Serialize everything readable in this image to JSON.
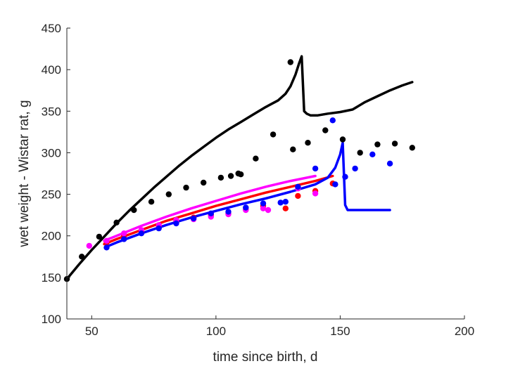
{
  "chart_data": {
    "type": "scatter",
    "xlabel": "time since birth, d",
    "ylabel": "wet weight - Wistar rat, g",
    "xlim": [
      40,
      200
    ],
    "ylim": [
      100,
      450
    ],
    "xticks": [
      50,
      100,
      150,
      200
    ],
    "yticks": [
      100,
      150,
      200,
      250,
      300,
      350,
      400,
      450
    ],
    "grid": false,
    "legend": "none",
    "box": "left-bottom",
    "lines": [
      {
        "color": "#000000",
        "x": [
          40,
          45,
          50,
          55,
          60,
          65,
          70,
          75,
          80,
          85,
          90,
          95,
          100,
          105,
          110,
          115,
          120,
          125,
          128,
          130,
          132,
          133.5,
          134.5,
          135.5,
          136.5,
          138,
          141,
          145,
          150,
          155,
          160,
          165,
          170,
          175,
          179
        ],
        "y": [
          148,
          166,
          183,
          199,
          215,
          230,
          244,
          258,
          271,
          284,
          296,
          307,
          318,
          328,
          337,
          346,
          355,
          363,
          371,
          380,
          394,
          408,
          416,
          350,
          347,
          345,
          345,
          347,
          349,
          352,
          361,
          368,
          375,
          381,
          385
        ]
      },
      {
        "color": "#ff0000",
        "x": [
          55,
          60,
          70,
          80,
          90,
          100,
          110,
          120,
          130,
          140,
          147
        ],
        "y": [
          190,
          196,
          207,
          218,
          227,
          236,
          244,
          252,
          259,
          266,
          272
        ]
      },
      {
        "color": "#ff00ff",
        "x": [
          55,
          60,
          70,
          80,
          90,
          100,
          110,
          120,
          130,
          140
        ],
        "y": [
          194,
          200,
          212,
          223,
          233,
          242,
          251,
          259,
          266,
          272
        ]
      },
      {
        "color": "#0000ff",
        "x": [
          56,
          60,
          70,
          80,
          90,
          100,
          110,
          120,
          130,
          140,
          145,
          148,
          150,
          151,
          152,
          153,
          156,
          160,
          165,
          170
        ],
        "y": [
          187,
          192,
          203,
          213,
          222,
          230,
          238,
          245,
          253,
          262,
          270,
          282,
          298,
          312,
          237,
          231,
          231,
          231,
          231,
          231
        ]
      }
    ],
    "series": [
      {
        "color": "#000000",
        "x": [
          40,
          46,
          53,
          60,
          67,
          74,
          81,
          88,
          95,
          102,
          106,
          109,
          110,
          116,
          123,
          130,
          131,
          137,
          144,
          151,
          158,
          165,
          172,
          179
        ],
        "y": [
          148,
          175,
          199,
          216,
          231,
          241,
          250,
          258,
          264,
          270,
          272,
          275,
          274,
          293,
          322,
          409,
          304,
          312,
          327,
          316,
          300,
          310,
          311,
          306
        ]
      },
      {
        "color": "#ff0000",
        "x": [
          56,
          63,
          70,
          77,
          84,
          91,
          98,
          105,
          112,
          119,
          128,
          133,
          140,
          147
        ],
        "y": [
          192,
          200,
          205,
          212,
          218,
          222,
          225,
          227,
          232,
          236,
          233,
          248,
          254,
          263
        ]
      },
      {
        "color": "#ff00ff",
        "x": [
          49,
          56,
          63,
          70,
          77,
          84,
          91,
          98,
          105,
          112,
          119,
          121,
          133,
          140
        ],
        "y": [
          188,
          194,
          203,
          207,
          213,
          219,
          220,
          223,
          226,
          231,
          233,
          231,
          257,
          251
        ]
      },
      {
        "color": "#0000ff",
        "x": [
          56,
          63,
          70,
          77,
          84,
          91,
          98,
          105,
          112,
          119,
          126,
          128,
          133,
          140,
          147,
          148,
          152,
          156,
          163,
          170
        ],
        "y": [
          186,
          196,
          203,
          209,
          215,
          221,
          227,
          229,
          234,
          239,
          240,
          241,
          259,
          281,
          339,
          262,
          271,
          281,
          298,
          287
        ]
      }
    ]
  }
}
